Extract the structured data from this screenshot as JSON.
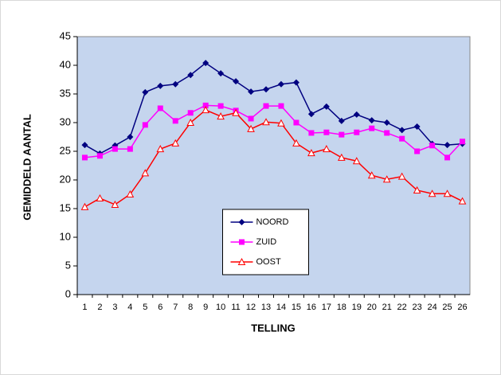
{
  "chart_data": {
    "type": "line",
    "x_label": "TELLING",
    "y_label": "GEMIDDELD AANTAL",
    "categories": [
      "1",
      "2",
      "3",
      "4",
      "5",
      "6",
      "7",
      "8",
      "9",
      "10",
      "11",
      "12",
      "13",
      "14",
      "15",
      "16",
      "17",
      "18",
      "19",
      "20",
      "21",
      "22",
      "23",
      "24",
      "25",
      "26"
    ],
    "series": [
      {
        "name": "NOORD",
        "color": "#000080",
        "marker": "diamond",
        "values": [
          26.1,
          24.6,
          26,
          27.5,
          35.3,
          36.4,
          36.7,
          38.3,
          40.4,
          38.6,
          37.2,
          35.4,
          35.8,
          36.7,
          37,
          31.5,
          32.8,
          30.3,
          31.4,
          30.4,
          30,
          28.7,
          29.3,
          26.3,
          26.1,
          26.3
        ]
      },
      {
        "name": "ZUID",
        "color": "#ff00ff",
        "marker": "square",
        "values": [
          23.9,
          24.2,
          25.4,
          25.4,
          29.6,
          32.5,
          30.3,
          31.7,
          33,
          32.9,
          32.1,
          30.7,
          32.9,
          32.9,
          30,
          28.2,
          28.3,
          27.9,
          28.3,
          29,
          28.2,
          27.2,
          25,
          26,
          23.9,
          26.7
        ]
      },
      {
        "name": "OOST",
        "color": "#ff0000",
        "marker": "triangle",
        "values": [
          15.3,
          16.8,
          15.7,
          17.5,
          21.2,
          25.4,
          26.4,
          30,
          32.2,
          31.1,
          31.7,
          28.9,
          30.1,
          29.9,
          26.4,
          24.7,
          25.4,
          23.9,
          23.3,
          20.8,
          20.1,
          20.6,
          18.2,
          17.6,
          17.6,
          16.3
        ]
      }
    ],
    "ylim": [
      0,
      45
    ],
    "yticks": [
      0,
      5,
      10,
      15,
      20,
      25,
      30,
      35,
      40,
      45
    ],
    "plot_background": "#c5d5ee",
    "legend": "center"
  }
}
